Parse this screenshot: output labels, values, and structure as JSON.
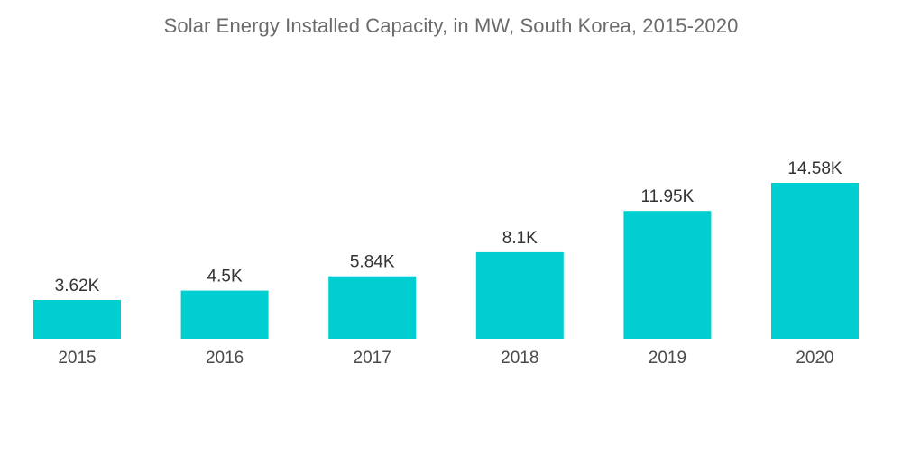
{
  "chart_data": {
    "type": "bar",
    "title": "Solar Energy Installed Capacity, in MW, South Korea, 2015-2020",
    "xlabel": "",
    "ylabel": "",
    "categories": [
      "2015",
      "2016",
      "2017",
      "2018",
      "2019",
      "2020"
    ],
    "values": [
      3620,
      4500,
      5840,
      8100,
      11950,
      14580
    ],
    "value_labels": [
      "3.62K",
      "4.5K",
      "5.84K",
      "8.1K",
      "11.95K",
      "14.58K"
    ],
    "ylim": [
      0,
      14580
    ],
    "grid": false,
    "legend": "none",
    "bar_color": "#00ced1"
  }
}
